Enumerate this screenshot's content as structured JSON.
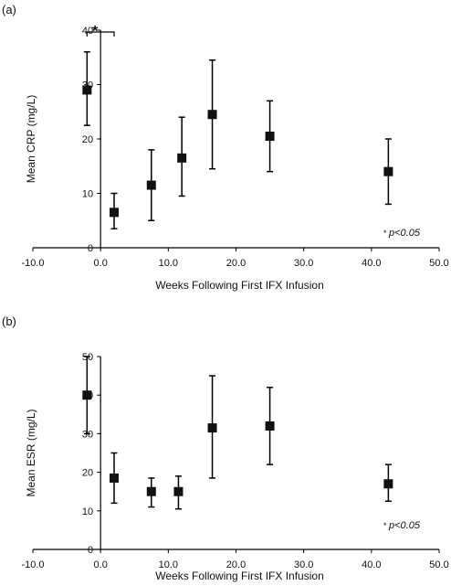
{
  "chart_data": [
    {
      "panel_label": "(a)",
      "type": "scatter",
      "error_bars": true,
      "xlabel": "Weeks Following First IFX Infusion",
      "ylabel": "Mean CRP (mg/L)",
      "xlim": [
        -10,
        50
      ],
      "ylim": [
        0,
        40
      ],
      "x_ticks": [
        "-10.0",
        "0.0",
        "10.0",
        "20.0",
        "30.0",
        "40.0",
        "50.0"
      ],
      "y_ticks": [
        "0",
        "10",
        "20",
        "30",
        "40"
      ],
      "annotation": "p<0.05",
      "significance_marker": "*",
      "points": [
        {
          "x": -2,
          "y": 29,
          "lo": 22.5,
          "hi": 36
        },
        {
          "x": 2,
          "y": 6.5,
          "lo": 3.5,
          "hi": 10
        },
        {
          "x": 7.5,
          "y": 11.5,
          "lo": 5,
          "hi": 18
        },
        {
          "x": 12,
          "y": 16.5,
          "lo": 9.5,
          "hi": 24
        },
        {
          "x": 16.5,
          "y": 24.5,
          "lo": 14.5,
          "hi": 34.5
        },
        {
          "x": 25,
          "y": 20.5,
          "lo": 14,
          "hi": 27
        },
        {
          "x": 42.5,
          "y": 14,
          "lo": 8,
          "hi": 20
        }
      ]
    },
    {
      "panel_label": "(b)",
      "type": "scatter",
      "error_bars": true,
      "xlabel": "Weeks Following First IFX Infusion",
      "ylabel": "Mean ESR (mg/L)",
      "xlim": [
        -10,
        50
      ],
      "ylim": [
        0,
        50
      ],
      "x_ticks": [
        "-10.0",
        "0.0",
        "10.0",
        "20.0",
        "30.0",
        "40.0",
        "50.0"
      ],
      "y_ticks": [
        "0",
        "10",
        "20",
        "30",
        "40",
        "50"
      ],
      "annotation": "p<0.05",
      "significance_marker": "*",
      "points": [
        {
          "x": -2,
          "y": 40,
          "lo": 30,
          "hi": 50
        },
        {
          "x": 2,
          "y": 18.5,
          "lo": 12,
          "hi": 25
        },
        {
          "x": 7.5,
          "y": 15,
          "lo": 11,
          "hi": 18.5
        },
        {
          "x": 11.5,
          "y": 15,
          "lo": 10.5,
          "hi": 19
        },
        {
          "x": 16.5,
          "y": 31.5,
          "lo": 18.5,
          "hi": 45
        },
        {
          "x": 25,
          "y": 32,
          "lo": 22,
          "hi": 42
        },
        {
          "x": 42.5,
          "y": 17,
          "lo": 12.5,
          "hi": 22
        }
      ]
    }
  ]
}
